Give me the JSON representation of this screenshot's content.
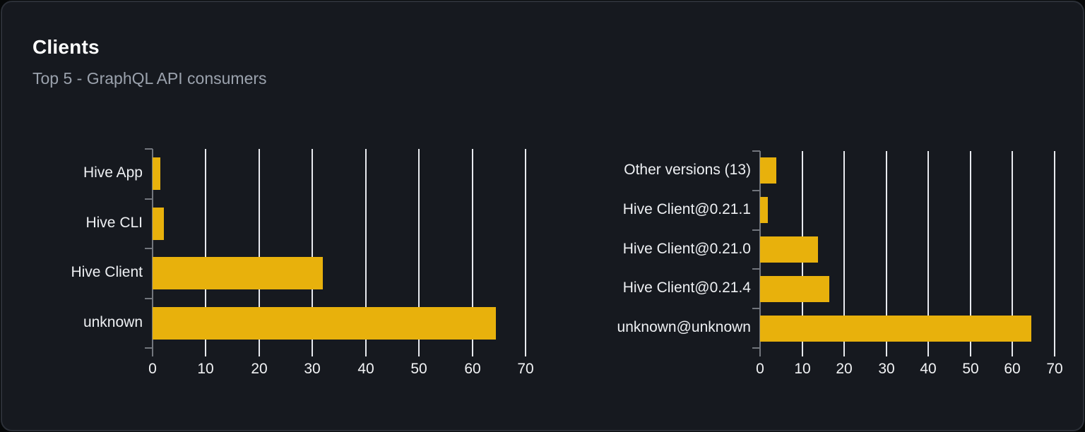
{
  "header": {
    "title": "Clients",
    "subtitle": "Top 5 - GraphQL API consumers"
  },
  "colors": {
    "page_bg": "#060809",
    "card_bg": "#16191f",
    "card_border": "#2b2f37",
    "bar": "#e8b10c",
    "gridline": "#e8eaef",
    "axis": "#72767d",
    "category_label": "#eef0f3",
    "tick_label": "#f2f3f5",
    "title": "#ffffff",
    "subtitle": "#9ba2ad"
  },
  "chart_data": [
    {
      "type": "bar",
      "orientation": "horizontal",
      "categories_top_to_bottom": [
        "Hive App",
        "Hive CLI",
        "Hive Client",
        "unknown"
      ],
      "values": [
        1.5,
        2.1,
        32,
        64.4
      ],
      "xlim": [
        0,
        70
      ],
      "xticks": [
        0,
        10,
        20,
        30,
        40,
        50,
        60,
        70
      ],
      "grid": true,
      "legend": "none",
      "bar_color": "#e8b10c"
    },
    {
      "type": "bar",
      "orientation": "horizontal",
      "categories_top_to_bottom": [
        "Other versions (13)",
        "Hive Client@0.21.1",
        "Hive Client@0.21.0",
        "Hive Client@0.21.4",
        "unknown@unknown"
      ],
      "values": [
        3.9,
        1.8,
        13.7,
        16.5,
        64.4
      ],
      "xlim": [
        0,
        70
      ],
      "xticks": [
        0,
        10,
        20,
        30,
        40,
        50,
        60,
        70
      ],
      "grid": true,
      "legend": "none",
      "bar_color": "#e8b10c"
    }
  ]
}
